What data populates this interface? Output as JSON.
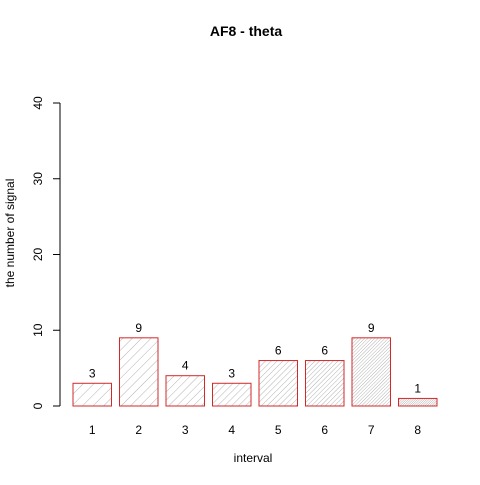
{
  "chart_data": {
    "type": "bar",
    "title": "AF8  -  theta",
    "xlabel": "interval",
    "ylabel": "the number of signal",
    "categories": [
      "1",
      "2",
      "3",
      "4",
      "5",
      "6",
      "7",
      "8"
    ],
    "values": [
      3,
      9,
      4,
      3,
      6,
      6,
      9,
      1
    ],
    "data_labels": [
      "3",
      "9",
      "4",
      "3",
      "6",
      "6",
      "9",
      "1"
    ],
    "ylim": [
      0,
      40
    ],
    "yticks": [
      "0",
      "10",
      "20",
      "30",
      "40"
    ],
    "grid": false,
    "legend": "none",
    "bar_border_color": "#d62728",
    "bar_hatch_color": "#a0a0a0"
  }
}
